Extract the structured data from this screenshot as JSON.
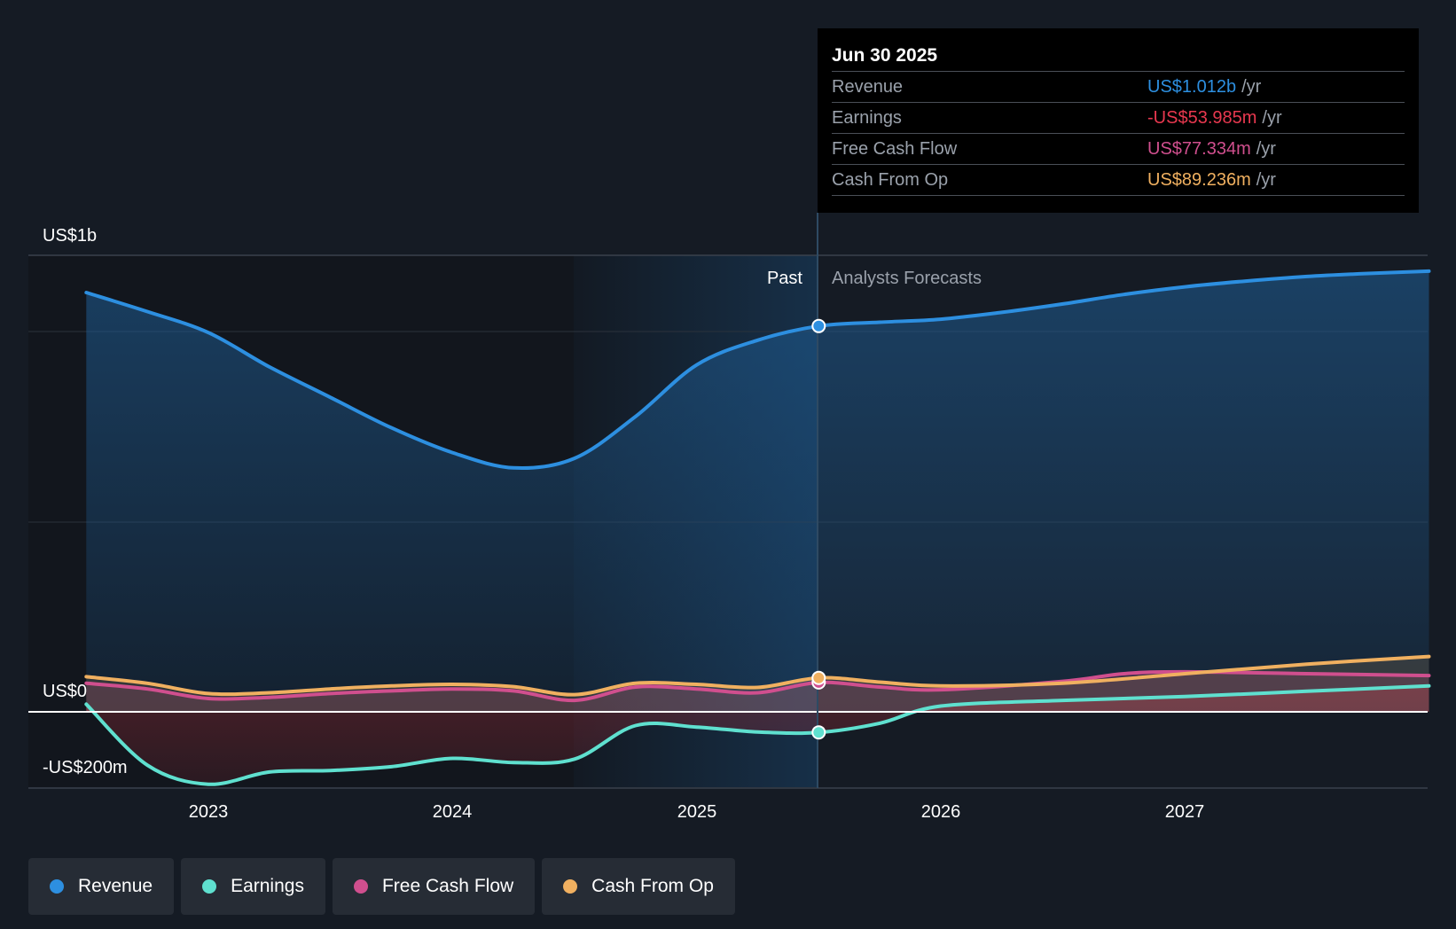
{
  "chart_data": {
    "type": "area",
    "title": "",
    "x_labels": [
      "2023",
      "2024",
      "2025",
      "2026",
      "2027"
    ],
    "y_labels": [
      "US$1b",
      "US$0",
      "-US$200m"
    ],
    "y_range_musd": [
      -200,
      1200
    ],
    "region_labels": {
      "past": "Past",
      "forecast": "Analysts Forecasts"
    },
    "divider_date": 2025.5,
    "series": [
      {
        "name": "Revenue",
        "color": "#2d8fe0",
        "points": [
          [
            2022.5,
            1100
          ],
          [
            2022.75,
            1050
          ],
          [
            2023.0,
            995
          ],
          [
            2023.25,
            905
          ],
          [
            2023.5,
            825
          ],
          [
            2023.75,
            745
          ],
          [
            2024.0,
            680
          ],
          [
            2024.25,
            640
          ],
          [
            2024.5,
            665
          ],
          [
            2024.75,
            775
          ],
          [
            2025.0,
            910
          ],
          [
            2025.25,
            975
          ],
          [
            2025.5,
            1012
          ],
          [
            2025.75,
            1022
          ],
          [
            2026.0,
            1030
          ],
          [
            2026.25,
            1048
          ],
          [
            2026.5,
            1070
          ],
          [
            2026.75,
            1095
          ],
          [
            2027.0,
            1115
          ],
          [
            2027.25,
            1130
          ],
          [
            2027.5,
            1142
          ],
          [
            2027.75,
            1150
          ],
          [
            2028.0,
            1156
          ]
        ]
      },
      {
        "name": "Earnings",
        "color": "#5fe0cf",
        "points": [
          [
            2022.5,
            20
          ],
          [
            2022.75,
            -140
          ],
          [
            2023.0,
            -190
          ],
          [
            2023.25,
            -158
          ],
          [
            2023.5,
            -154
          ],
          [
            2023.75,
            -144
          ],
          [
            2024.0,
            -122
          ],
          [
            2024.25,
            -133
          ],
          [
            2024.5,
            -124
          ],
          [
            2024.75,
            -36
          ],
          [
            2025.0,
            -40
          ],
          [
            2025.25,
            -53
          ],
          [
            2025.5,
            -54
          ],
          [
            2025.75,
            -30
          ],
          [
            2026.0,
            15
          ],
          [
            2026.5,
            30
          ],
          [
            2027.0,
            40
          ],
          [
            2027.5,
            54
          ],
          [
            2028.0,
            68
          ]
        ]
      },
      {
        "name": "Free Cash Flow",
        "color": "#d04f8e",
        "points": [
          [
            2022.5,
            75
          ],
          [
            2022.75,
            60
          ],
          [
            2023.0,
            35
          ],
          [
            2023.25,
            38
          ],
          [
            2023.5,
            48
          ],
          [
            2023.75,
            55
          ],
          [
            2024.0,
            60
          ],
          [
            2024.25,
            55
          ],
          [
            2024.5,
            30
          ],
          [
            2024.75,
            65
          ],
          [
            2025.0,
            60
          ],
          [
            2025.25,
            50
          ],
          [
            2025.5,
            77
          ],
          [
            2025.75,
            65
          ],
          [
            2026.0,
            58
          ],
          [
            2026.5,
            80
          ],
          [
            2026.75,
            100
          ],
          [
            2027.0,
            105
          ],
          [
            2027.5,
            100
          ],
          [
            2028.0,
            95
          ]
        ]
      },
      {
        "name": "Cash From Op",
        "color": "#f0b060",
        "points": [
          [
            2022.5,
            92
          ],
          [
            2022.75,
            75
          ],
          [
            2023.0,
            48
          ],
          [
            2023.25,
            50
          ],
          [
            2023.5,
            60
          ],
          [
            2023.75,
            68
          ],
          [
            2024.0,
            72
          ],
          [
            2024.25,
            66
          ],
          [
            2024.5,
            45
          ],
          [
            2024.75,
            75
          ],
          [
            2025.0,
            72
          ],
          [
            2025.25,
            64
          ],
          [
            2025.5,
            89
          ],
          [
            2025.75,
            78
          ],
          [
            2026.0,
            68
          ],
          [
            2026.5,
            75
          ],
          [
            2027.0,
            100
          ],
          [
            2027.5,
            125
          ],
          [
            2028.0,
            145
          ]
        ]
      }
    ]
  },
  "tooltip": {
    "date": "Jun 30 2025",
    "rows": [
      {
        "label": "Revenue",
        "value": "US$1.012b",
        "unit": "/yr",
        "color": "#2d8fe0"
      },
      {
        "label": "Earnings",
        "value": "-US$53.985m",
        "unit": "/yr",
        "color": "#e8384f"
      },
      {
        "label": "Free Cash Flow",
        "value": "US$77.334m",
        "unit": "/yr",
        "color": "#d04f8e"
      },
      {
        "label": "Cash From Op",
        "value": "US$89.236m",
        "unit": "/yr",
        "color": "#f0b060"
      }
    ]
  },
  "legend": [
    {
      "label": "Revenue",
      "color": "#2d8fe0"
    },
    {
      "label": "Earnings",
      "color": "#5fe0cf"
    },
    {
      "label": "Free Cash Flow",
      "color": "#d04f8e"
    },
    {
      "label": "Cash From Op",
      "color": "#f0b060"
    }
  ]
}
